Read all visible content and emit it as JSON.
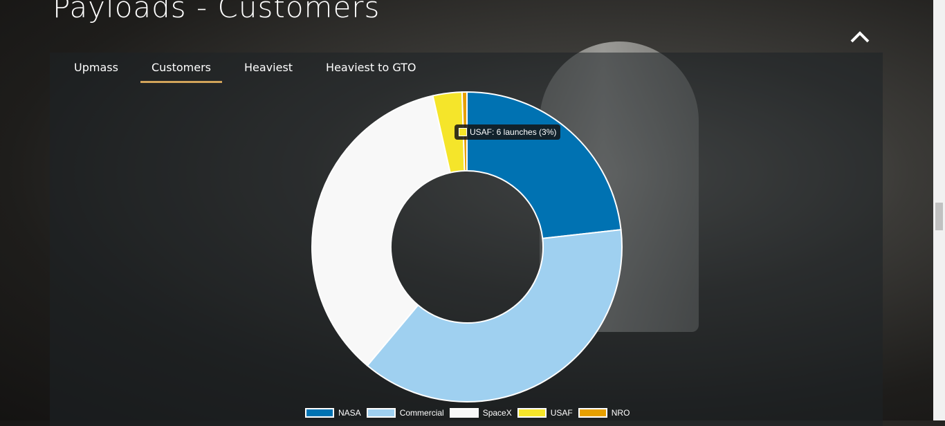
{
  "header": {
    "title": "Payloads - Customers"
  },
  "tabs": [
    "Upmass",
    "Customers",
    "Heaviest",
    "Heaviest to GTO"
  ],
  "active_tab": 1,
  "chart_data": {
    "type": "doughnut",
    "categories": [
      "NASA",
      "Commercial",
      "SpaceX",
      "USAF",
      "NRO"
    ],
    "values": [
      46,
      75,
      70,
      6,
      1
    ],
    "colors": [
      "#0072b2",
      "#9fd0f0",
      "#f8f8f8",
      "#f5e52a",
      "#e69f00"
    ],
    "tooltip": "USAF: 6 launches (3%)"
  }
}
